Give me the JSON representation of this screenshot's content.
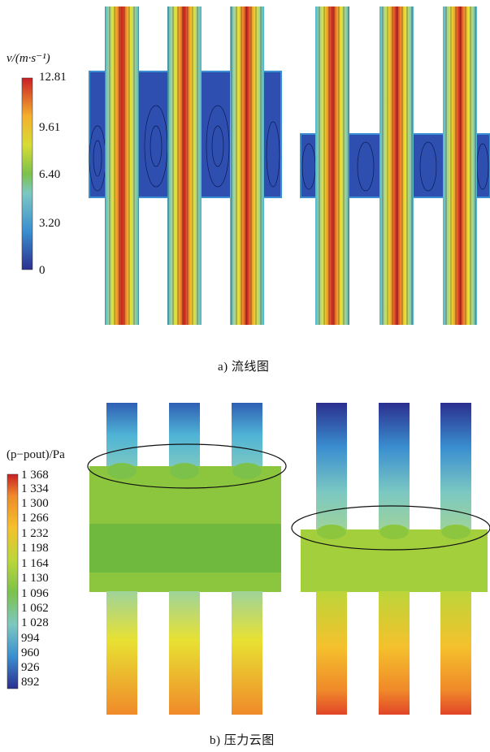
{
  "panel_a": {
    "caption": "a) 流线图",
    "unit_label": "v/(m·s⁻¹)",
    "colorbar_ticks": [
      "12.81",
      "9.61",
      "6.40",
      "3.20",
      "0"
    ]
  },
  "panel_b": {
    "caption": "b) 压力云图",
    "unit_label": "(p−pout)/Pa",
    "colorbar_ticks": [
      "1 368",
      "1 334",
      "1 300",
      "1 266",
      "1 232",
      "1 198",
      "1 164",
      "1 130",
      "1 096",
      "1 062",
      "1 028",
      "994",
      "960",
      "926",
      "892"
    ]
  },
  "colors": {
    "jet": [
      "#2b2f8f",
      "#2f5fb4",
      "#3a8fd0",
      "#4fb4d6",
      "#7cc8c2",
      "#9fd39a",
      "#7cc24a",
      "#bcd63a",
      "#e8e132",
      "#f4c12c",
      "#f08a2a",
      "#e14527",
      "#c91f26"
    ],
    "outline": "#111111"
  }
}
